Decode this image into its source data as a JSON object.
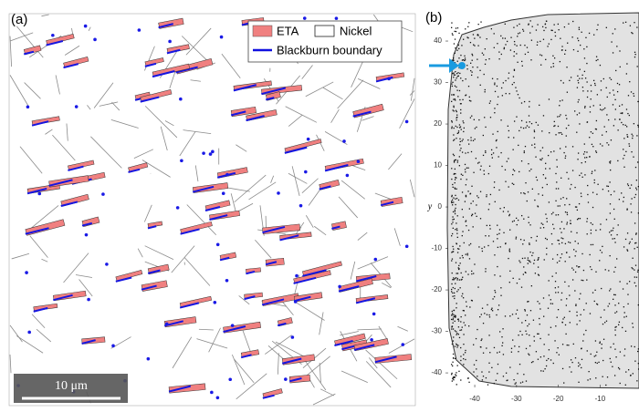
{
  "panel_a": {
    "label": "(a)",
    "legend": [
      "ETA",
      "Nickel",
      "Blackburn boundary"
    ],
    "scale_bar": "10 μm"
  },
  "panel_b": {
    "label": "(b)",
    "y_label": "y",
    "ylim": [
      -43.5,
      46.6
    ],
    "yticks": [
      40,
      30,
      20,
      10,
      0,
      -10,
      -20,
      -30,
      -40
    ],
    "xlim": [
      -47,
      -0.7
    ],
    "xticks": [
      -40,
      -30,
      -20,
      -10
    ]
  }
}
